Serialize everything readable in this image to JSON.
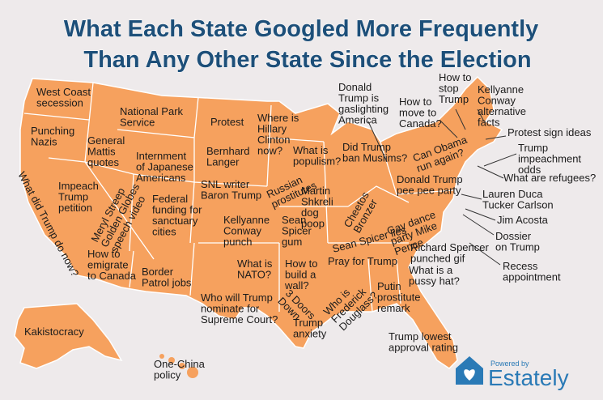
{
  "title": {
    "lines": [
      "What Each State Googled More Frequently",
      "Than Any Other State Since the Election"
    ]
  },
  "labels": [
    {
      "lines": [
        "West Coast",
        "secession"
      ]
    },
    {
      "lines": [
        "Punching",
        "Nazis"
      ]
    },
    {
      "lines": [
        "National Park",
        "Service"
      ]
    },
    {
      "lines": [
        "General",
        "Mattis",
        "quotes"
      ]
    },
    {
      "lines": [
        "Protest"
      ]
    },
    {
      "lines": [
        "Where is",
        "Hillary",
        "Clinton",
        "now?"
      ]
    },
    {
      "lines": [
        "Bernhard",
        "Langer"
      ]
    },
    {
      "lines": [
        "Internment",
        "of Japanese",
        "Americans"
      ]
    },
    {
      "lines": [
        "What is",
        "populism?"
      ]
    },
    {
      "lines": [
        "Impeach",
        "Trump",
        "petition"
      ]
    },
    {
      "lines": [
        "What did Trump do now?"
      ]
    },
    {
      "lines": [
        "Meryl Streep",
        "Golden Globes",
        "speech video"
      ]
    },
    {
      "lines": [
        "SNL writer",
        "Baron Trump"
      ]
    },
    {
      "lines": [
        "Russian",
        "prostitutes"
      ]
    },
    {
      "lines": [
        "Federal",
        "funding for",
        "sanctuary",
        "cities"
      ]
    },
    {
      "lines": [
        "Martin",
        "Shkreli",
        "dog",
        "poop"
      ]
    },
    {
      "lines": [
        "Cheetos",
        "Bronzer"
      ]
    },
    {
      "lines": [
        "Kellyanne",
        "Conway",
        "punch"
      ]
    },
    {
      "lines": [
        "Sean",
        "Spicer",
        "gum"
      ]
    },
    {
      "lines": [
        "Sean Spicer lies"
      ]
    },
    {
      "lines": [
        "How to",
        "emigrate",
        "to Canada"
      ]
    },
    {
      "lines": [
        "What is",
        "NATO?"
      ]
    },
    {
      "lines": [
        "Pray for Trump"
      ]
    },
    {
      "lines": [
        "Border",
        "Patrol jobs"
      ]
    },
    {
      "lines": [
        "How to",
        "build a",
        "wall?"
      ]
    },
    {
      "lines": [
        "Who is",
        "Frederick",
        "Douglass?"
      ]
    },
    {
      "lines": [
        "What is a",
        "pussy hat?"
      ]
    },
    {
      "lines": [
        "Who will Trump",
        "nominate for",
        "Supreme Court?"
      ]
    },
    {
      "lines": [
        "3 Doors",
        "Down"
      ]
    },
    {
      "lines": [
        "Putin",
        "prostitute",
        "remark"
      ]
    },
    {
      "lines": [
        "Trump",
        "anxiety"
      ]
    },
    {
      "lines": [
        "Kakistocracy"
      ]
    },
    {
      "lines": [
        "Trump lowest",
        "approval rating"
      ]
    },
    {
      "lines": [
        "One-China",
        "policy"
      ]
    },
    {
      "lines": [
        "Donald",
        "Trump is",
        "gaslighting",
        "America"
      ]
    },
    {
      "lines": [
        "How to",
        "stop",
        "Trump"
      ]
    },
    {
      "lines": [
        "Kellyanne",
        "Conway",
        "alternative",
        "facts"
      ]
    },
    {
      "lines": [
        "How to",
        "move to",
        "Canada?"
      ]
    },
    {
      "lines": [
        "Did Trump",
        "ban Muslims?"
      ]
    },
    {
      "lines": [
        "Can Obama",
        "run again?"
      ]
    },
    {
      "lines": [
        "Protest sign ideas"
      ]
    },
    {
      "lines": [
        "Trump",
        "impeachment",
        "odds"
      ]
    },
    {
      "lines": [
        "What are refugees?"
      ]
    },
    {
      "lines": [
        "Donald Trump",
        "pee pee party"
      ]
    },
    {
      "lines": [
        "Lauren Duca",
        "Tucker Carlson"
      ]
    },
    {
      "lines": [
        "Gay dance",
        "party Mike",
        "Pence"
      ]
    },
    {
      "lines": [
        "Jim Acosta"
      ]
    },
    {
      "lines": [
        "Dossier",
        "on Trump"
      ]
    },
    {
      "lines": [
        "Richard Spencer",
        "punched gif"
      ]
    },
    {
      "lines": [
        "Recess",
        "appointment"
      ]
    }
  ],
  "logo": {
    "tagline": "Powered by",
    "name": "Estately"
  }
}
